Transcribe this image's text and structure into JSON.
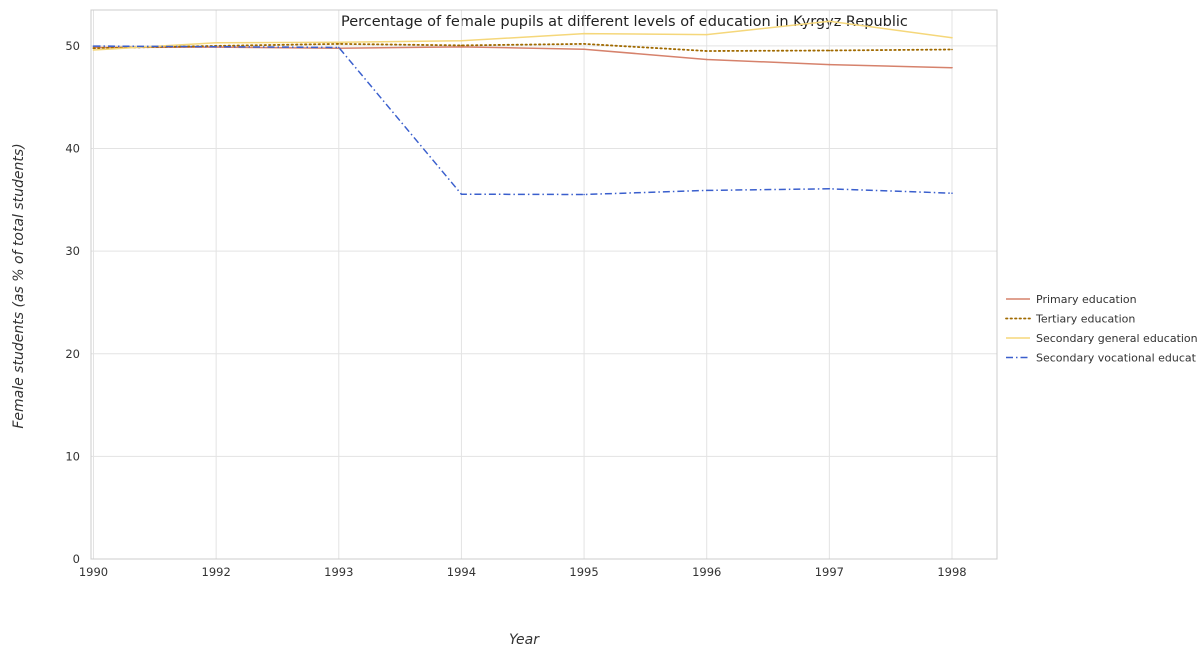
{
  "chart_data": {
    "type": "line",
    "title": "Percentage of female pupils at different levels of education in Kyrgyz Republic",
    "xlabel": "Year",
    "ylabel": "Female students (as % of total students)",
    "categories": [
      "1990",
      "1992",
      "1993",
      "1994",
      "1995",
      "1996",
      "1997",
      "1998"
    ],
    "ylim": [
      0,
      53.5
    ],
    "yticks": [
      0,
      10,
      20,
      30,
      40,
      50
    ],
    "grid": true,
    "legend_position": "right",
    "series": [
      {
        "name": "Primary education",
        "color": "#d6826c",
        "dash": "solid",
        "values": [
          49.85,
          49.88,
          49.78,
          49.9,
          49.68,
          48.68,
          48.18,
          47.88
        ]
      },
      {
        "name": "Tertiary education",
        "color": "#a06a00",
        "dash": "dotted",
        "values": [
          49.78,
          50.0,
          50.2,
          50.05,
          50.2,
          49.5,
          49.55,
          49.65
        ]
      },
      {
        "name": "Secondary general education",
        "color": "#f5d77a",
        "dash": "solid",
        "values": [
          49.6,
          50.3,
          50.35,
          50.5,
          51.2,
          51.1,
          52.4,
          50.8
        ]
      },
      {
        "name": "Secondary vocational education",
        "color": "#3a5fcd",
        "dash": "dashdot",
        "values": [
          49.98,
          49.92,
          49.85,
          35.55,
          35.52,
          35.92,
          36.08,
          35.65
        ]
      }
    ]
  }
}
